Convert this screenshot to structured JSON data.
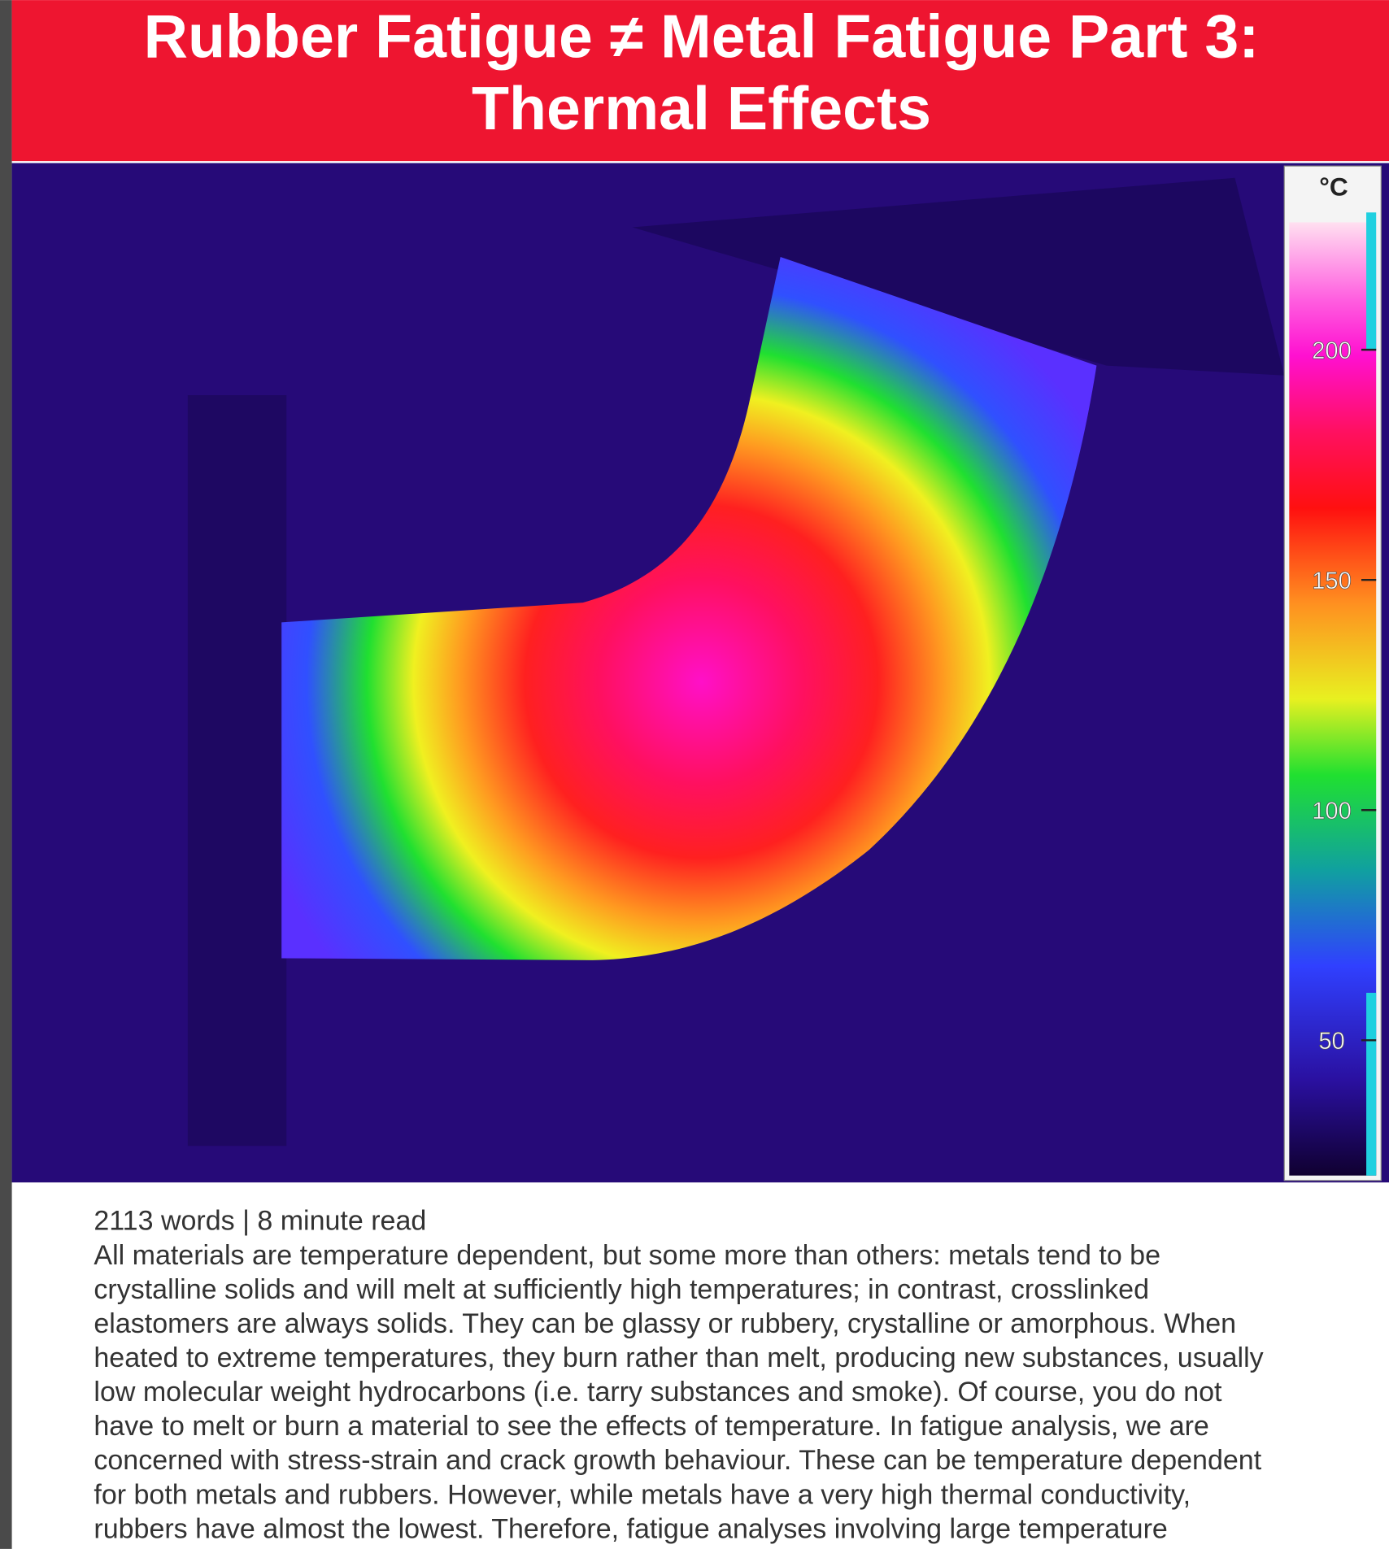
{
  "header": {
    "title": [
      "Rubber Fatigue ≠ Metal Fatigue Part 3:",
      "Thermal Effects"
    ]
  },
  "image": {
    "colorbar": {
      "unit": "°C",
      "ticks": [
        200,
        150,
        100,
        50
      ]
    }
  },
  "article": {
    "meta": "2113 words | 8 minute read",
    "lines": [
      "All materials are temperature dependent, but some more than others: metals tend to be",
      "crystalline solids and will melt at sufficiently high temperatures; in contrast, crosslinked",
      "elastomers are always solids. They can be glassy or rubbery, crystalline or amorphous. When",
      "heated to extreme temperatures, they burn rather than melt, producing new substances, usually",
      "low molecular weight hydrocarbons (i.e. tarry substances and smoke). Of course, you do not",
      "have to melt or burn a material to see the effects of temperature. In fatigue analysis, we are",
      "concerned with stress-strain and crack growth behaviour. These can be temperature dependent",
      "for both metals and rubbers. However, while metals have a very high thermal conductivity,",
      "rubbers have almost the lowest. Therefore, fatigue analyses involving large temperature"
    ]
  }
}
